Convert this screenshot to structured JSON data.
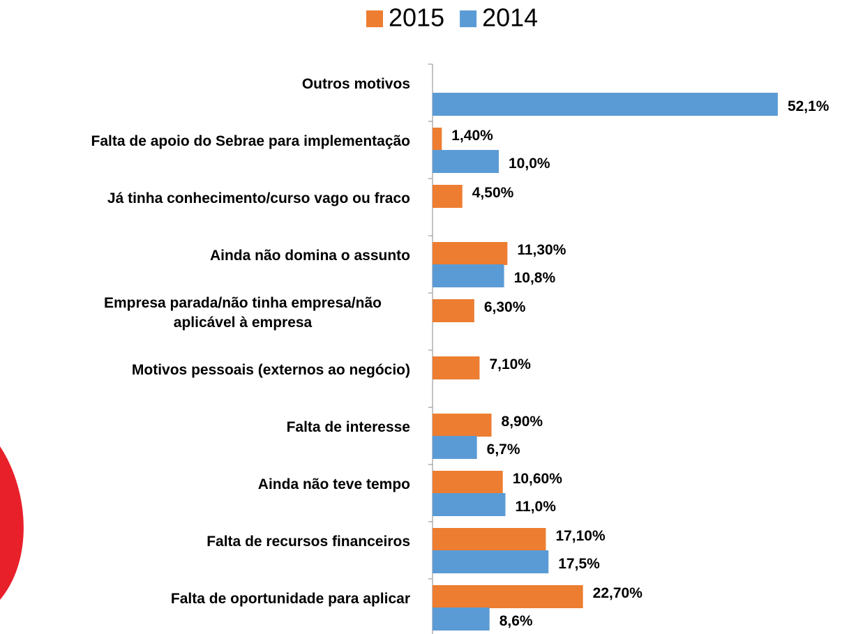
{
  "chart_data": {
    "type": "bar",
    "orientation": "horizontal",
    "categories": [
      "Outros motivos",
      "Falta de apoio do Sebrae para implementação",
      "Já tinha conhecimento/curso vago ou fraco",
      "Ainda não domina o assunto",
      "Empresa parada/não tinha empresa/não aplicável à empresa",
      "Motivos pessoais (externos ao negócio)",
      "Falta de interesse",
      "Ainda não teve tempo",
      "Falta de recursos financeiros",
      "Falta de oportunidade para aplicar"
    ],
    "series": [
      {
        "name": "2015",
        "color": "#ed7d31",
        "values": [
          null,
          1.4,
          4.5,
          11.3,
          6.3,
          7.1,
          8.9,
          10.6,
          17.1,
          22.7
        ],
        "value_labels": [
          null,
          "1,40%",
          "4,50%",
          "11,30%",
          "6,30%",
          "7,10%",
          "8,90%",
          "10,60%",
          "17,10%",
          "22,70%"
        ]
      },
      {
        "name": "2014",
        "color": "#5b9bd5",
        "values": [
          52.1,
          10.0,
          null,
          10.8,
          null,
          null,
          6.7,
          11.0,
          17.5,
          8.6
        ],
        "value_labels": [
          "52,1%",
          "10,0%",
          null,
          "10,8%",
          null,
          null,
          "6,7%",
          "11,0%",
          "17,5%",
          "8,6%"
        ]
      }
    ],
    "legend": "top"
  }
}
